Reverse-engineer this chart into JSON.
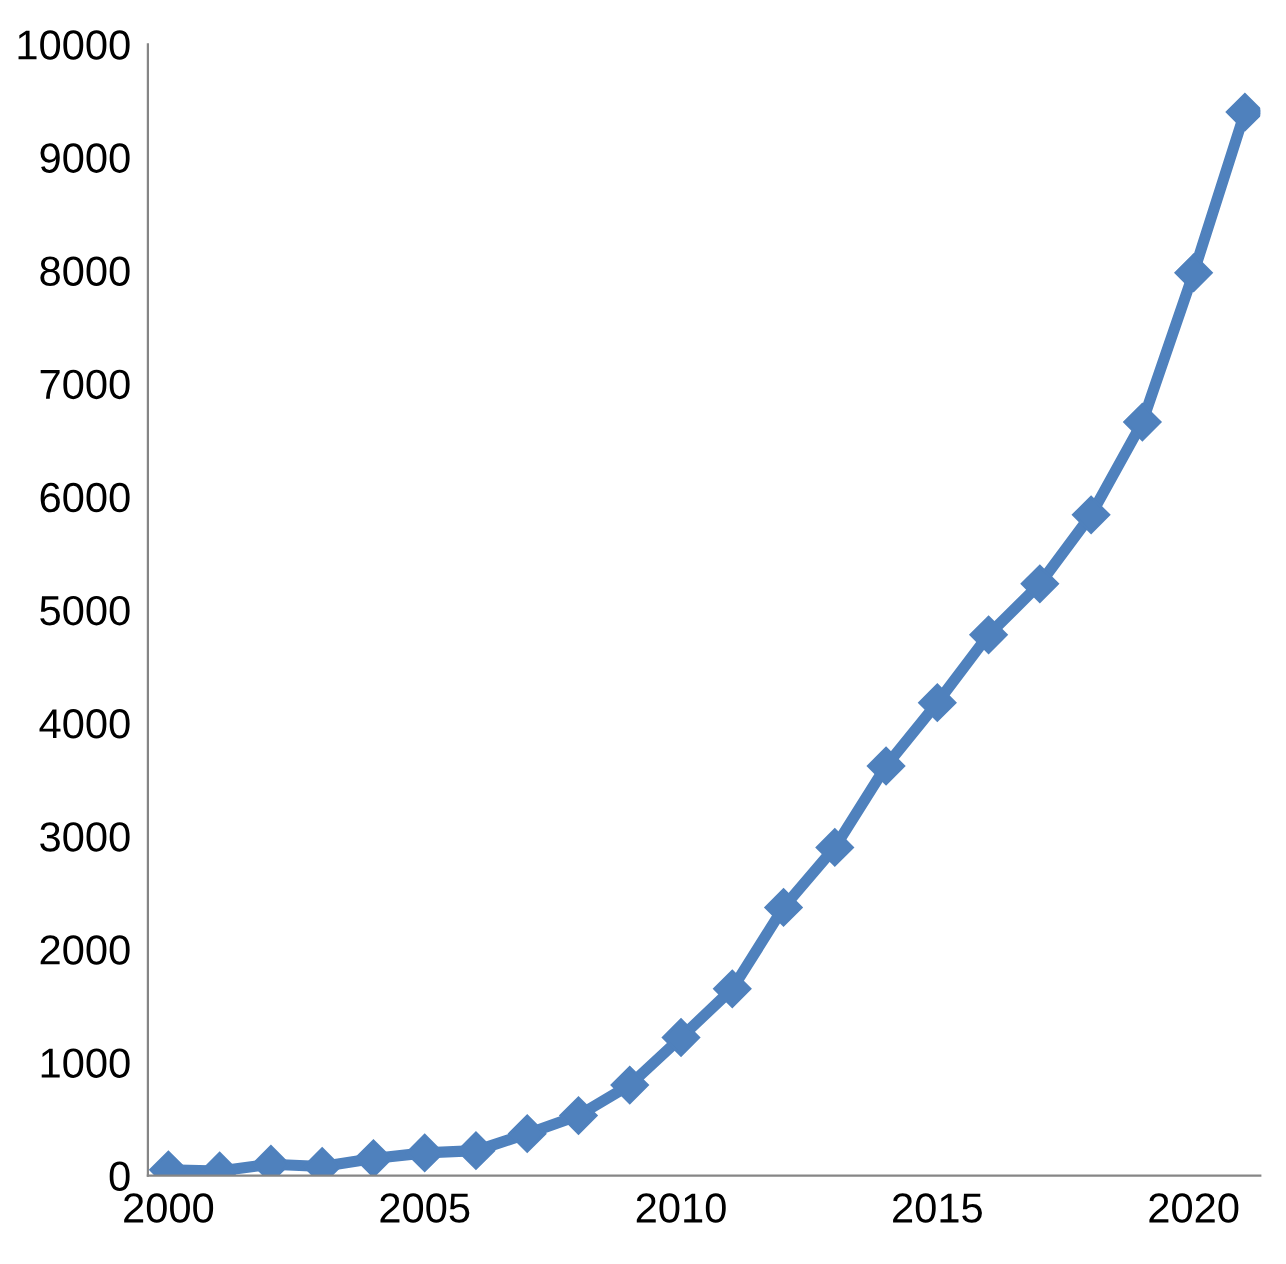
{
  "chart_data": {
    "type": "line",
    "x": [
      2000,
      2001,
      2002,
      2003,
      2004,
      2005,
      2006,
      2007,
      2008,
      2009,
      2010,
      2011,
      2012,
      2013,
      2014,
      2015,
      2016,
      2017,
      2018,
      2019,
      2020,
      2021
    ],
    "series": [
      {
        "color": "#4f81bd",
        "values": [
          50,
          40,
          100,
          80,
          150,
          200,
          220,
          370,
          530,
          800,
          1220,
          1650,
          2370,
          2900,
          3620,
          4180,
          4780,
          5230,
          5840,
          6660,
          7980,
          9400
        ]
      }
    ],
    "xlim": [
      1999.6,
      2021.3
    ],
    "xticks": [
      2000,
      2005,
      2010,
      2015,
      2020
    ],
    "ylim": [
      0,
      10000
    ],
    "yticks": [
      0,
      1000,
      2000,
      3000,
      4000,
      5000,
      6000,
      7000,
      8000,
      9000,
      10000
    ],
    "grid": false,
    "legend": false,
    "marker": "diamond",
    "line_style": "solid"
  }
}
